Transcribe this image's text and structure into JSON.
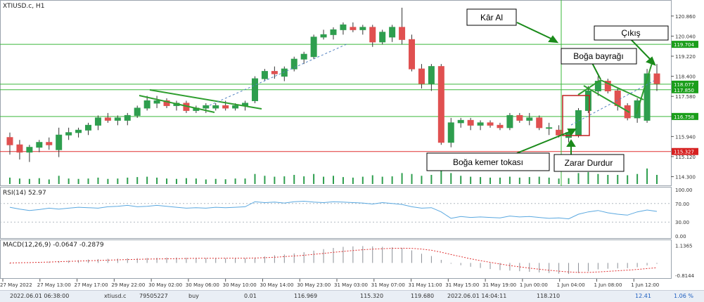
{
  "symbol_label": "XTIUSD.c, H1",
  "rsi_label": "RSI(14) 52.97",
  "macd_label": "MACD(12,26,9) -0.0647 -0.2879",
  "price_axis": {
    "ticks": [
      "120.860",
      "120.040",
      "119.220",
      "118.400",
      "117.580",
      "116.760",
      "115.940",
      "115.120",
      "114.300"
    ],
    "tags": [
      {
        "text": "119.704",
        "color": "#1a9e1a"
      },
      {
        "text": "118.077",
        "color": "#1a9e1a"
      },
      {
        "text": "117.850",
        "color": "#1a9e1a"
      },
      {
        "text": "116.758",
        "color": "#1a9e1a"
      },
      {
        "text": "115.327",
        "color": "#d62020"
      }
    ]
  },
  "rsi_axis": {
    "ticks": [
      "100.00",
      "70.00",
      "30.00",
      "0.00"
    ]
  },
  "macd_axis": {
    "ticks": [
      "1.1365",
      "-0.8144"
    ]
  },
  "time_axis": [
    "27 May 2022",
    "27 May 13:00",
    "27 May 17:00",
    "29 May 22:00",
    "30 May 02:00",
    "30 May 06:00",
    "30 May 10:00",
    "30 May 14:00",
    "30 May 23:00",
    "31 May 03:00",
    "31 May 07:00",
    "31 May 11:00",
    "31 May 15:00",
    "31 May 19:00",
    "1 Jun 00:00",
    "1 Jun 04:00",
    "1 Jun 08:00",
    "1 Jun 12:00"
  ],
  "callouts": {
    "take_profit": "Kâr Al",
    "exit": "Çıkış",
    "bull_flag": "Boğa bayrağı",
    "belt_hold": "Boğa kemer tokası",
    "stop_loss": "Zarar Durdur"
  },
  "status_bar": {
    "open_time": "2022.06.01 06:38:00",
    "symbol": "xtiusd.c",
    "ticket": "79505227",
    "type": "buy",
    "volume": "0.01",
    "open_price": "116.969",
    "sl": "115.320",
    "tp": "119.680",
    "close_time": "2022.06.01 14:04:11",
    "close_price": "118.210",
    "profit": "12.41",
    "pct": "1.06 %"
  },
  "colors": {
    "bull": "#2e9e4e",
    "bear": "#e05050",
    "level": "#3bb83b",
    "stop": "#e03030",
    "rsi": "#5aa8e0",
    "macd_signal": "#e03030"
  },
  "chart_data": {
    "type": "candlestick",
    "price_range": [
      114.0,
      121.4
    ],
    "candles": [
      {
        "o": 115.9,
        "h": 116.1,
        "l": 115.2,
        "c": 115.6
      },
      {
        "o": 115.6,
        "h": 115.8,
        "l": 115.0,
        "c": 115.3
      },
      {
        "o": 115.3,
        "h": 115.6,
        "l": 114.9,
        "c": 115.5
      },
      {
        "o": 115.5,
        "h": 115.8,
        "l": 115.3,
        "c": 115.7
      },
      {
        "o": 115.7,
        "h": 115.9,
        "l": 115.4,
        "c": 115.6
      },
      {
        "o": 115.4,
        "h": 116.3,
        "l": 115.1,
        "c": 116.0
      },
      {
        "o": 116.0,
        "h": 116.3,
        "l": 115.8,
        "c": 116.1
      },
      {
        "o": 116.1,
        "h": 116.3,
        "l": 115.9,
        "c": 116.2
      },
      {
        "o": 116.2,
        "h": 116.5,
        "l": 116.0,
        "c": 116.4
      },
      {
        "o": 116.4,
        "h": 116.8,
        "l": 116.2,
        "c": 116.7
      },
      {
        "o": 116.7,
        "h": 116.9,
        "l": 116.5,
        "c": 116.6
      },
      {
        "o": 116.6,
        "h": 116.8,
        "l": 116.4,
        "c": 116.7
      },
      {
        "o": 116.6,
        "h": 116.9,
        "l": 116.4,
        "c": 116.8
      },
      {
        "o": 116.8,
        "h": 117.2,
        "l": 116.7,
        "c": 117.1
      },
      {
        "o": 117.1,
        "h": 117.6,
        "l": 117.0,
        "c": 117.4
      },
      {
        "o": 117.3,
        "h": 117.6,
        "l": 117.1,
        "c": 117.4
      },
      {
        "o": 117.4,
        "h": 117.5,
        "l": 117.1,
        "c": 117.2
      },
      {
        "o": 117.2,
        "h": 117.4,
        "l": 117.0,
        "c": 117.3
      },
      {
        "o": 117.3,
        "h": 117.4,
        "l": 116.9,
        "c": 117.0
      },
      {
        "o": 117.0,
        "h": 117.2,
        "l": 116.9,
        "c": 117.1
      },
      {
        "o": 117.1,
        "h": 117.3,
        "l": 116.9,
        "c": 117.2
      },
      {
        "o": 117.1,
        "h": 117.3,
        "l": 117.0,
        "c": 117.2
      },
      {
        "o": 117.2,
        "h": 117.4,
        "l": 117.0,
        "c": 117.1
      },
      {
        "o": 117.1,
        "h": 117.3,
        "l": 117.0,
        "c": 117.2
      },
      {
        "o": 117.2,
        "h": 117.4,
        "l": 117.0,
        "c": 117.3
      },
      {
        "o": 117.4,
        "h": 118.4,
        "l": 117.3,
        "c": 118.3
      },
      {
        "o": 118.3,
        "h": 118.7,
        "l": 118.2,
        "c": 118.6
      },
      {
        "o": 118.6,
        "h": 118.8,
        "l": 118.3,
        "c": 118.5
      },
      {
        "o": 118.4,
        "h": 118.8,
        "l": 118.2,
        "c": 118.7
      },
      {
        "o": 118.7,
        "h": 119.2,
        "l": 118.6,
        "c": 119.1
      },
      {
        "o": 119.1,
        "h": 119.4,
        "l": 118.9,
        "c": 119.3
      },
      {
        "o": 119.2,
        "h": 120.1,
        "l": 119.1,
        "c": 120.0
      },
      {
        "o": 120.0,
        "h": 120.3,
        "l": 119.9,
        "c": 120.1
      },
      {
        "o": 120.1,
        "h": 120.4,
        "l": 119.9,
        "c": 120.3
      },
      {
        "o": 120.3,
        "h": 120.6,
        "l": 120.1,
        "c": 120.5
      },
      {
        "o": 120.4,
        "h": 120.6,
        "l": 120.2,
        "c": 120.3
      },
      {
        "o": 120.3,
        "h": 120.5,
        "l": 120.1,
        "c": 120.4
      },
      {
        "o": 120.4,
        "h": 120.5,
        "l": 119.6,
        "c": 119.8
      },
      {
        "o": 119.8,
        "h": 120.3,
        "l": 119.7,
        "c": 120.2
      },
      {
        "o": 120.0,
        "h": 120.5,
        "l": 119.8,
        "c": 120.4
      },
      {
        "o": 120.4,
        "h": 121.2,
        "l": 119.7,
        "c": 119.9
      },
      {
        "o": 119.9,
        "h": 120.1,
        "l": 118.6,
        "c": 118.7
      },
      {
        "o": 118.7,
        "h": 118.9,
        "l": 117.9,
        "c": 118.1
      },
      {
        "o": 118.1,
        "h": 118.9,
        "l": 117.8,
        "c": 118.8
      },
      {
        "o": 118.8,
        "h": 118.9,
        "l": 115.6,
        "c": 115.7
      },
      {
        "o": 115.7,
        "h": 116.7,
        "l": 115.5,
        "c": 116.5
      },
      {
        "o": 116.5,
        "h": 116.7,
        "l": 116.3,
        "c": 116.6
      },
      {
        "o": 116.6,
        "h": 116.7,
        "l": 116.2,
        "c": 116.4
      },
      {
        "o": 116.4,
        "h": 116.6,
        "l": 116.2,
        "c": 116.5
      },
      {
        "o": 116.5,
        "h": 116.6,
        "l": 116.3,
        "c": 116.4
      },
      {
        "o": 116.4,
        "h": 116.5,
        "l": 116.2,
        "c": 116.3
      },
      {
        "o": 116.3,
        "h": 116.9,
        "l": 116.2,
        "c": 116.8
      },
      {
        "o": 116.8,
        "h": 116.9,
        "l": 116.5,
        "c": 116.6
      },
      {
        "o": 116.6,
        "h": 116.9,
        "l": 116.4,
        "c": 116.7
      },
      {
        "o": 116.7,
        "h": 116.8,
        "l": 116.2,
        "c": 116.3
      },
      {
        "o": 116.3,
        "h": 116.5,
        "l": 116.0,
        "c": 116.3
      },
      {
        "o": 116.2,
        "h": 116.4,
        "l": 115.9,
        "c": 116.0
      },
      {
        "o": 115.9,
        "h": 116.2,
        "l": 115.7,
        "c": 116.1
      },
      {
        "o": 116.0,
        "h": 117.1,
        "l": 115.9,
        "c": 117.0
      },
      {
        "o": 117.0,
        "h": 118.0,
        "l": 116.9,
        "c": 117.8
      },
      {
        "o": 117.8,
        "h": 118.4,
        "l": 117.6,
        "c": 118.2
      },
      {
        "o": 118.2,
        "h": 118.3,
        "l": 117.7,
        "c": 117.8
      },
      {
        "o": 117.8,
        "h": 117.9,
        "l": 117.0,
        "c": 117.2
      },
      {
        "o": 117.2,
        "h": 117.3,
        "l": 116.6,
        "c": 116.7
      },
      {
        "o": 116.7,
        "h": 117.5,
        "l": 116.5,
        "c": 117.4
      },
      {
        "o": 116.6,
        "h": 118.7,
        "l": 116.5,
        "c": 118.5
      },
      {
        "o": 118.5,
        "h": 118.9,
        "l": 117.8,
        "c": 118.1
      }
    ],
    "rsi_range": [
      0,
      100
    ],
    "rsi": [
      62,
      58,
      55,
      57,
      60,
      58,
      60,
      62,
      61,
      60,
      63,
      64,
      66,
      63,
      64,
      66,
      64,
      62,
      60,
      61,
      60,
      62,
      61,
      62,
      63,
      74,
      72,
      73,
      71,
      74,
      75,
      73,
      72,
      74,
      73,
      72,
      71,
      69,
      72,
      70,
      68,
      63,
      60,
      61,
      52,
      38,
      42,
      40,
      41,
      40,
      39,
      43,
      41,
      42,
      40,
      38,
      39,
      37,
      47,
      52,
      55,
      50,
      47,
      45,
      52,
      56,
      53
    ],
    "macd_range": [
      -0.9,
      1.3
    ],
    "macd_hist": [
      -0.05,
      -0.02,
      0.02,
      0.05,
      0.08,
      0.12,
      0.15,
      0.18,
      0.22,
      0.25,
      0.27,
      0.28,
      0.3,
      0.31,
      0.32,
      0.34,
      0.35,
      0.35,
      0.34,
      0.33,
      0.32,
      0.32,
      0.31,
      0.31,
      0.31,
      0.35,
      0.42,
      0.5,
      0.55,
      0.62,
      0.7,
      0.8,
      0.9,
      0.98,
      1.05,
      1.08,
      1.1,
      1.08,
      1.05,
      1.02,
      0.98,
      0.82,
      0.6,
      0.45,
      0.2,
      -0.05,
      -0.15,
      -0.25,
      -0.33,
      -0.4,
      -0.47,
      -0.5,
      -0.54,
      -0.58,
      -0.62,
      -0.66,
      -0.7,
      -0.72,
      -0.66,
      -0.55,
      -0.42,
      -0.38,
      -0.36,
      -0.34,
      -0.28,
      -0.16,
      -0.06
    ],
    "macd_signal": [
      0.0,
      0.01,
      0.02,
      0.04,
      0.06,
      0.08,
      0.1,
      0.12,
      0.14,
      0.16,
      0.18,
      0.2,
      0.22,
      0.23,
      0.25,
      0.26,
      0.27,
      0.28,
      0.29,
      0.3,
      0.3,
      0.3,
      0.31,
      0.31,
      0.31,
      0.32,
      0.34,
      0.37,
      0.41,
      0.45,
      0.5,
      0.56,
      0.62,
      0.69,
      0.75,
      0.81,
      0.86,
      0.9,
      0.93,
      0.95,
      0.96,
      0.95,
      0.9,
      0.83,
      0.7,
      0.55,
      0.41,
      0.27,
      0.15,
      0.04,
      -0.07,
      -0.17,
      -0.26,
      -0.34,
      -0.41,
      -0.48,
      -0.54,
      -0.59,
      -0.62,
      -0.62,
      -0.59,
      -0.55,
      -0.51,
      -0.47,
      -0.43,
      -0.37,
      -0.31
    ],
    "volume": [
      0.35,
      0.3,
      0.28,
      0.32,
      0.25,
      0.45,
      0.3,
      0.28,
      0.3,
      0.35,
      0.28,
      0.3,
      0.35,
      0.38,
      0.4,
      0.35,
      0.3,
      0.28,
      0.32,
      0.3,
      0.25,
      0.28,
      0.26,
      0.3,
      0.3,
      0.55,
      0.45,
      0.4,
      0.42,
      0.5,
      0.42,
      0.55,
      0.4,
      0.45,
      0.38,
      0.35,
      0.4,
      0.48,
      0.4,
      0.42,
      0.6,
      0.55,
      0.45,
      0.5,
      0.9,
      0.6,
      0.45,
      0.4,
      0.38,
      0.35,
      0.35,
      0.4,
      0.35,
      0.38,
      0.4,
      0.35,
      0.3,
      0.32,
      0.6,
      0.65,
      0.55,
      0.5,
      0.5,
      0.48,
      0.55,
      0.85,
      0.5
    ],
    "levels": [
      119.704,
      118.077,
      117.85,
      116.758,
      115.327
    ]
  }
}
